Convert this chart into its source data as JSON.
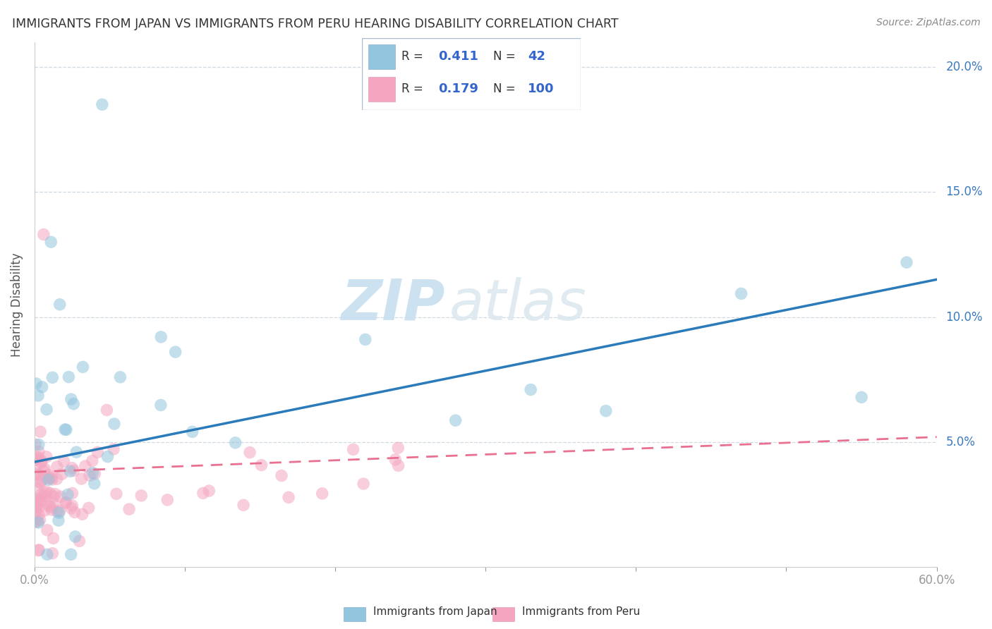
{
  "title": "IMMIGRANTS FROM JAPAN VS IMMIGRANTS FROM PERU HEARING DISABILITY CORRELATION CHART",
  "source": "Source: ZipAtlas.com",
  "xlabel_label": "Immigrants from Japan",
  "xlabel_label2": "Immigrants from Peru",
  "ylabel": "Hearing Disability",
  "watermark_zip": "ZIP",
  "watermark_atlas": "atlas",
  "japan_R": 0.411,
  "japan_N": 42,
  "peru_R": 0.179,
  "peru_N": 100,
  "japan_color": "#92c5de",
  "peru_color": "#f4a6c0",
  "japan_line_color": "#2b7bba",
  "peru_line_color": "#e87090",
  "xlim": [
    0.0,
    0.6
  ],
  "ylim": [
    0.0,
    0.21
  ],
  "ytick_positions": [
    0.05,
    0.1,
    0.15,
    0.2
  ],
  "ytick_labels": [
    "5.0%",
    "10.0%",
    "15.0%",
    "20.0%"
  ],
  "japan_trend_y0": 0.042,
  "japan_trend_y1": 0.115,
  "peru_trend_y0": 0.038,
  "peru_trend_y1": 0.052,
  "legend_R_color": "#3366cc",
  "legend_N_color": "#3366cc"
}
